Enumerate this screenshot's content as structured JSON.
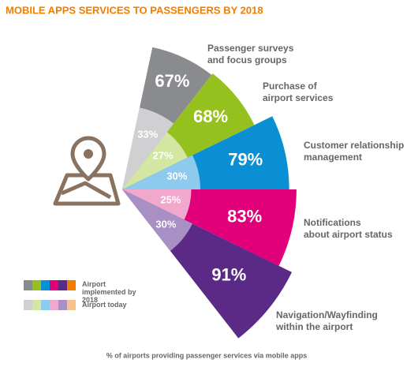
{
  "chart_data": {
    "type": "polar-area",
    "title": "MOBILE APPS SERVICES TO PASSENGERS BY 2018",
    "footnote": "% of airports providing passenger services via mobile apps",
    "categories": [
      [
        "Passenger surveys",
        "and focus groups"
      ],
      [
        "Purchase of",
        "airport services"
      ],
      [
        "Customer relationship",
        "management"
      ],
      [
        "Notifications",
        "about airport status"
      ],
      [
        "Navigation/Wayfinding",
        "within the airport"
      ]
    ],
    "series": [
      {
        "name": "Airport implemented by 2018",
        "colors": [
          "#8a8b8e",
          "#95c11f",
          "#0b8fd4",
          "#e2007a",
          "#5b2a86"
        ],
        "values": [
          67,
          68,
          79,
          83,
          91
        ],
        "value_labels": [
          "67%",
          "68%",
          "79%",
          "83%",
          "91%"
        ]
      },
      {
        "name": "Airport today",
        "colors": [
          "#d0d0d2",
          "#d3e6a2",
          "#8ecaee",
          "#f2a7cc",
          "#a890c4"
        ],
        "values": [
          33,
          27,
          30,
          25,
          30
        ],
        "value_labels": [
          "33%",
          "27%",
          "30%",
          "25%",
          "30%"
        ]
      }
    ]
  }
}
